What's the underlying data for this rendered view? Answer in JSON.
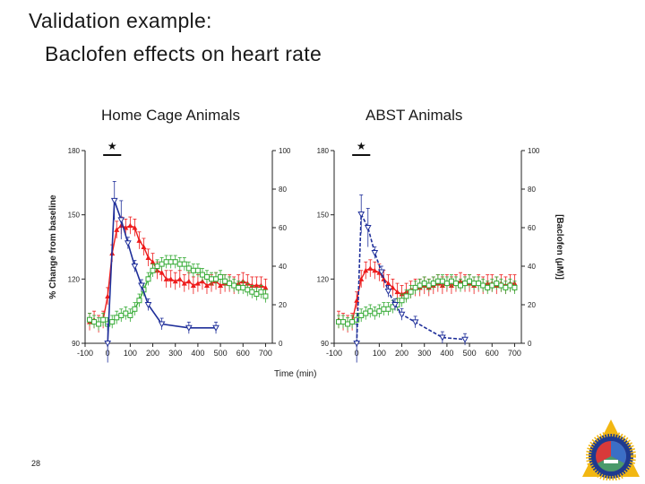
{
  "slide": {
    "title": "Validation example:",
    "subtitle": "Baclofen effects on heart rate",
    "page_number": "28"
  },
  "chart_data": [
    {
      "type": "line",
      "title": "Home Cage Animals",
      "xlabel": "Time (min)",
      "ylabel": "% Change from baseline",
      "y2label": "",
      "xlim": [
        -100,
        730
      ],
      "ylim": [
        90,
        180
      ],
      "y2lim": [
        0,
        100
      ],
      "xticks": [
        "-100",
        "0",
        "100",
        "200",
        "300",
        "400",
        "500",
        "600",
        "700"
      ],
      "yticks": [
        "90",
        "120",
        "150",
        "180"
      ],
      "y2ticks": [
        "0",
        "20",
        "40",
        "60",
        "80",
        "100"
      ],
      "significance_marker": "★",
      "significance_span": [
        -20,
        60
      ],
      "colors": {
        "red": "#ee1c1c",
        "green": "#33aa33",
        "blue": "#1f2f9a"
      },
      "series": [
        {
          "color": "red",
          "marker": "triangle-up",
          "x": [
            -80,
            -60,
            -40,
            -20,
            0,
            20,
            40,
            60,
            80,
            100,
            120,
            140,
            160,
            180,
            200,
            220,
            240,
            260,
            280,
            300,
            320,
            340,
            360,
            380,
            400,
            420,
            440,
            460,
            480,
            500,
            520,
            540,
            560,
            580,
            600,
            620,
            640,
            660,
            680,
            700
          ],
          "y": [
            100,
            101,
            99,
            101,
            112,
            132,
            143,
            145,
            144,
            145,
            144,
            138,
            135,
            130,
            128,
            124,
            123,
            120,
            120,
            119,
            120,
            118,
            119,
            117,
            118,
            119,
            117,
            118,
            119,
            117,
            118,
            118,
            117,
            118,
            119,
            118,
            117,
            117,
            117,
            116
          ]
        },
        {
          "color": "green",
          "marker": "square-open",
          "x": [
            -80,
            -60,
            -40,
            -20,
            0,
            20,
            40,
            60,
            80,
            100,
            120,
            140,
            160,
            180,
            200,
            220,
            240,
            260,
            280,
            300,
            320,
            340,
            360,
            380,
            400,
            420,
            440,
            460,
            480,
            500,
            520,
            540,
            560,
            580,
            600,
            620,
            640,
            660,
            680,
            700
          ],
          "y": [
            101,
            100,
            99,
            101,
            99,
            100,
            102,
            103,
            104,
            103,
            106,
            110,
            115,
            120,
            124,
            126,
            127,
            128,
            128,
            128,
            127,
            127,
            125,
            124,
            124,
            122,
            121,
            120,
            120,
            121,
            119,
            118,
            117,
            116,
            116,
            115,
            114,
            113,
            114,
            112
          ]
        },
        {
          "color": "blue",
          "marker": "triangle-down-open",
          "axis": "right",
          "x": [
            0,
            30,
            60,
            90,
            120,
            150,
            180,
            240,
            360,
            480
          ],
          "y": [
            0,
            74,
            64,
            52,
            40,
            30,
            20,
            10,
            8,
            8
          ]
        }
      ]
    },
    {
      "type": "line",
      "title": "ABST Animals",
      "xlabel": "Time (min)",
      "ylabel": "",
      "y2label": "[Baclofen (μM)]",
      "xlim": [
        -100,
        730
      ],
      "ylim": [
        90,
        180
      ],
      "y2lim": [
        0,
        100
      ],
      "xticks": [
        "-100",
        "0",
        "100",
        "200",
        "300",
        "400",
        "500",
        "600",
        "700"
      ],
      "yticks": [
        "90",
        "120",
        "150",
        "180"
      ],
      "y2ticks": [
        "0",
        "20",
        "40",
        "60",
        "80",
        "100"
      ],
      "significance_marker": "★",
      "significance_span": [
        -20,
        60
      ],
      "colors": {
        "red": "#ee1c1c",
        "green": "#33aa33",
        "blue": "#1f2f9a"
      },
      "series": [
        {
          "color": "red",
          "marker": "triangle-up",
          "x": [
            -80,
            -60,
            -40,
            -20,
            0,
            20,
            40,
            60,
            80,
            100,
            120,
            140,
            160,
            180,
            200,
            220,
            240,
            260,
            280,
            300,
            320,
            340,
            360,
            380,
            400,
            420,
            440,
            460,
            480,
            500,
            520,
            540,
            560,
            580,
            600,
            620,
            640,
            660,
            680,
            700
          ],
          "y": [
            101,
            100,
            99,
            100,
            110,
            120,
            124,
            125,
            124,
            123,
            120,
            118,
            116,
            114,
            113,
            114,
            115,
            116,
            116,
            117,
            116,
            117,
            118,
            117,
            118,
            117,
            118,
            119,
            118,
            118,
            117,
            118,
            117,
            118,
            118,
            117,
            118,
            117,
            118,
            118
          ]
        },
        {
          "color": "green",
          "marker": "square-open",
          "x": [
            -80,
            -60,
            -40,
            -20,
            0,
            20,
            40,
            60,
            80,
            100,
            120,
            140,
            160,
            180,
            200,
            220,
            240,
            260,
            280,
            300,
            320,
            340,
            360,
            380,
            400,
            420,
            440,
            460,
            480,
            500,
            520,
            540,
            560,
            580,
            600,
            620,
            640,
            660,
            680,
            700
          ],
          "y": [
            100,
            100,
            99,
            100,
            101,
            103,
            104,
            105,
            104,
            105,
            106,
            106,
            107,
            108,
            110,
            112,
            114,
            116,
            117,
            118,
            117,
            118,
            119,
            119,
            118,
            119,
            118,
            117,
            118,
            119,
            118,
            118,
            117,
            116,
            117,
            118,
            117,
            116,
            117,
            116
          ]
        },
        {
          "color": "blue",
          "marker": "triangle-down-open",
          "axis": "right",
          "x": [
            0,
            20,
            50,
            80,
            110,
            140,
            170,
            200,
            260,
            380,
            480
          ],
          "y": [
            0,
            67,
            60,
            47,
            37,
            27,
            20,
            15,
            11,
            3,
            2
          ]
        }
      ]
    }
  ]
}
